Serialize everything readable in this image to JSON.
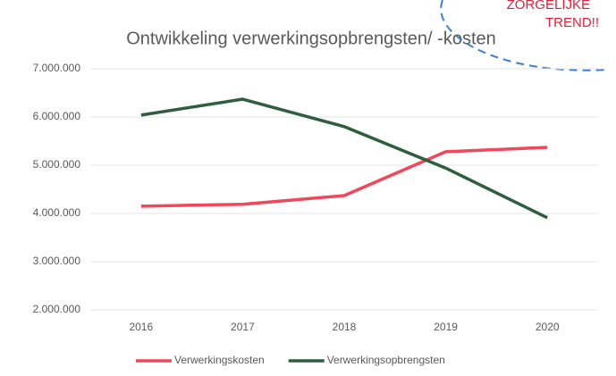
{
  "chart_data": {
    "type": "line",
    "title": "Ontwikkeling verwerkingsopbrengsten/ -kosten",
    "annotations": [
      "ZORGELIJKE",
      "TREND!!"
    ],
    "categories": [
      "2016",
      "2017",
      "2018",
      "2019",
      "2020"
    ],
    "series": [
      {
        "name": "Verwerkingskosten",
        "color": "#f0475a",
        "values": [
          4150000,
          4190000,
          4370000,
          5280000,
          5370000
        ]
      },
      {
        "name": "Verwerkingsopbrengsten",
        "color": "#2e5e3e",
        "values": [
          6040000,
          6370000,
          5800000,
          4940000,
          3910000
        ]
      }
    ],
    "ylim": [
      2000000,
      7000000
    ],
    "yticks": [
      {
        "value": 2000000,
        "label": "2.000.000"
      },
      {
        "value": 3000000,
        "label": "3.000.000"
      },
      {
        "value": 4000000,
        "label": "4.000.000"
      },
      {
        "value": 5000000,
        "label": "5.000.000"
      },
      {
        "value": 6000000,
        "label": "6.000.000"
      },
      {
        "value": 7000000,
        "label": "7.000.000"
      }
    ],
    "grid": true,
    "legend": "bottom"
  }
}
